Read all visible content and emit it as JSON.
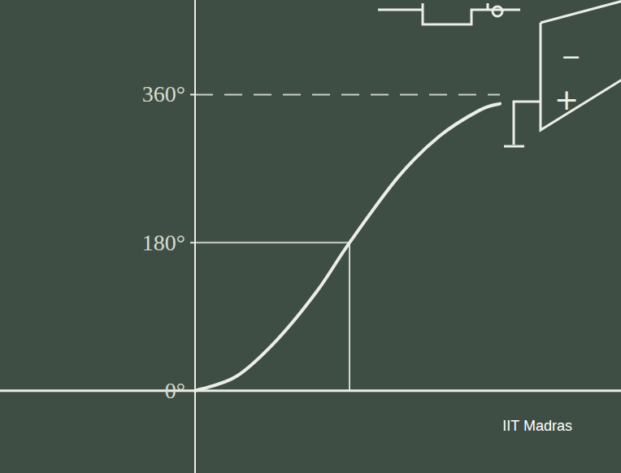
{
  "chart_data": {
    "type": "line",
    "x": [
      0,
      0.5,
      1.0,
      1.5,
      1.9,
      2.5,
      3.0,
      3.5,
      3.75
    ],
    "values": [
      0,
      17,
      61,
      121,
      180,
      260,
      309,
      341,
      349
    ],
    "xlim": [
      -2.4,
      5.24
    ],
    "ylim": [
      -100,
      475
    ],
    "yticks": [
      {
        "value": 0,
        "label": "0°"
      },
      {
        "value": 180,
        "label": "180°"
      },
      {
        "value": 360,
        "label": "360°"
      }
    ],
    "tick_labels": "y",
    "grid": false,
    "color": "#eceee6",
    "line_style": "solid",
    "annotations": [
      "IIT Madras",
      "−",
      "+"
    ]
  }
}
